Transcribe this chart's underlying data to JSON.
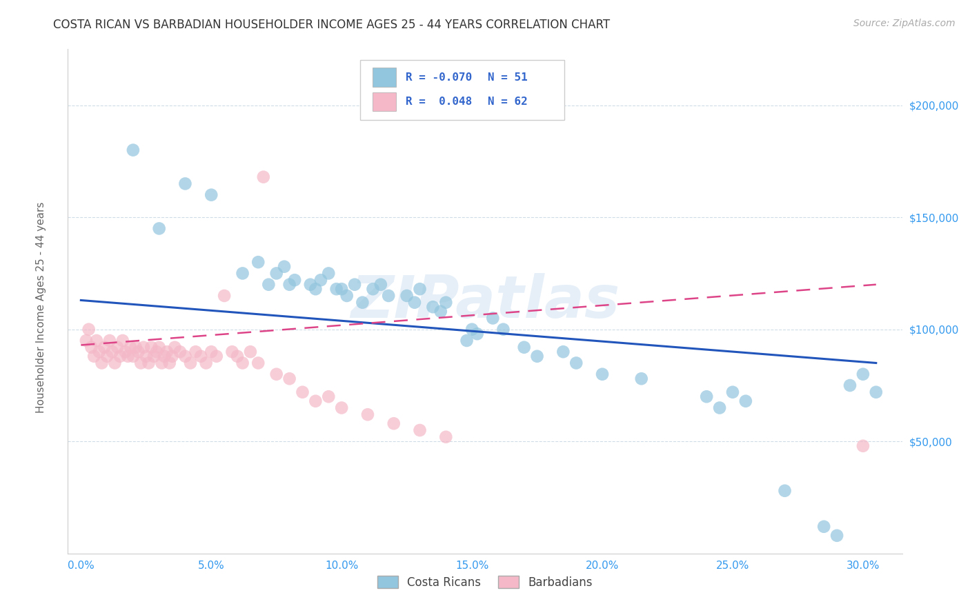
{
  "title": "COSTA RICAN VS BARBADIAN HOUSEHOLDER INCOME AGES 25 - 44 YEARS CORRELATION CHART",
  "source": "Source: ZipAtlas.com",
  "ylabel": "Householder Income Ages 25 - 44 years",
  "xlabel_ticks": [
    "0.0%",
    "5.0%",
    "10.0%",
    "15.0%",
    "20.0%",
    "25.0%",
    "30.0%"
  ],
  "xlabel_vals": [
    0.0,
    0.05,
    0.1,
    0.15,
    0.2,
    0.25,
    0.3
  ],
  "ytick_labels": [
    "$50,000",
    "$100,000",
    "$150,000",
    "$200,000"
  ],
  "ytick_vals": [
    50000,
    100000,
    150000,
    200000
  ],
  "ylim": [
    0,
    225000
  ],
  "xlim": [
    -0.005,
    0.315
  ],
  "watermark": "ZIPatlas",
  "blue_color": "#92c5de",
  "pink_color": "#f4b8c8",
  "line_blue": "#2255bb",
  "line_pink": "#dd4488",
  "bottom_legend_blue": "Costa Ricans",
  "bottom_legend_pink": "Barbadians",
  "blue_scatter_x": [
    0.02,
    0.04,
    0.03,
    0.05,
    0.062,
    0.068,
    0.072,
    0.075,
    0.078,
    0.08,
    0.082,
    0.088,
    0.09,
    0.092,
    0.095,
    0.098,
    0.1,
    0.102,
    0.105,
    0.108,
    0.112,
    0.115,
    0.118,
    0.125,
    0.128,
    0.13,
    0.135,
    0.138,
    0.14,
    0.148,
    0.15,
    0.152,
    0.158,
    0.162,
    0.17,
    0.175,
    0.185,
    0.19,
    0.2,
    0.215,
    0.24,
    0.245,
    0.25,
    0.255,
    0.27,
    0.285,
    0.29,
    0.295,
    0.3,
    0.305
  ],
  "blue_scatter_y": [
    180000,
    165000,
    145000,
    160000,
    125000,
    130000,
    120000,
    125000,
    128000,
    120000,
    122000,
    120000,
    118000,
    122000,
    125000,
    118000,
    118000,
    115000,
    120000,
    112000,
    118000,
    120000,
    115000,
    115000,
    112000,
    118000,
    110000,
    108000,
    112000,
    95000,
    100000,
    98000,
    105000,
    100000,
    92000,
    88000,
    90000,
    85000,
    80000,
    78000,
    70000,
    65000,
    72000,
    68000,
    28000,
    12000,
    8000,
    75000,
    80000,
    72000
  ],
  "pink_scatter_x": [
    0.002,
    0.003,
    0.004,
    0.005,
    0.006,
    0.007,
    0.008,
    0.009,
    0.01,
    0.011,
    0.012,
    0.013,
    0.014,
    0.015,
    0.016,
    0.017,
    0.018,
    0.019,
    0.02,
    0.021,
    0.022,
    0.023,
    0.024,
    0.025,
    0.026,
    0.027,
    0.028,
    0.029,
    0.03,
    0.031,
    0.032,
    0.033,
    0.034,
    0.035,
    0.036,
    0.038,
    0.04,
    0.042,
    0.044,
    0.046,
    0.048,
    0.05,
    0.052,
    0.055,
    0.058,
    0.06,
    0.062,
    0.065,
    0.068,
    0.07,
    0.075,
    0.08,
    0.085,
    0.09,
    0.095,
    0.1,
    0.11,
    0.12,
    0.13,
    0.14,
    0.3
  ],
  "pink_scatter_y": [
    95000,
    100000,
    92000,
    88000,
    95000,
    90000,
    85000,
    92000,
    88000,
    95000,
    90000,
    85000,
    92000,
    88000,
    95000,
    90000,
    88000,
    92000,
    88000,
    92000,
    90000,
    85000,
    92000,
    88000,
    85000,
    92000,
    88000,
    90000,
    92000,
    85000,
    88000,
    90000,
    85000,
    88000,
    92000,
    90000,
    88000,
    85000,
    90000,
    88000,
    85000,
    90000,
    88000,
    115000,
    90000,
    88000,
    85000,
    90000,
    85000,
    168000,
    80000,
    78000,
    72000,
    68000,
    70000,
    65000,
    62000,
    58000,
    55000,
    52000,
    48000
  ],
  "title_fontsize": 12,
  "source_fontsize": 10,
  "tick_fontsize": 11,
  "label_fontsize": 11,
  "legend_r_blue": "R = -0.070",
  "legend_n_blue": "N = 51",
  "legend_r_pink": "R =  0.048",
  "legend_n_pink": "N = 62"
}
